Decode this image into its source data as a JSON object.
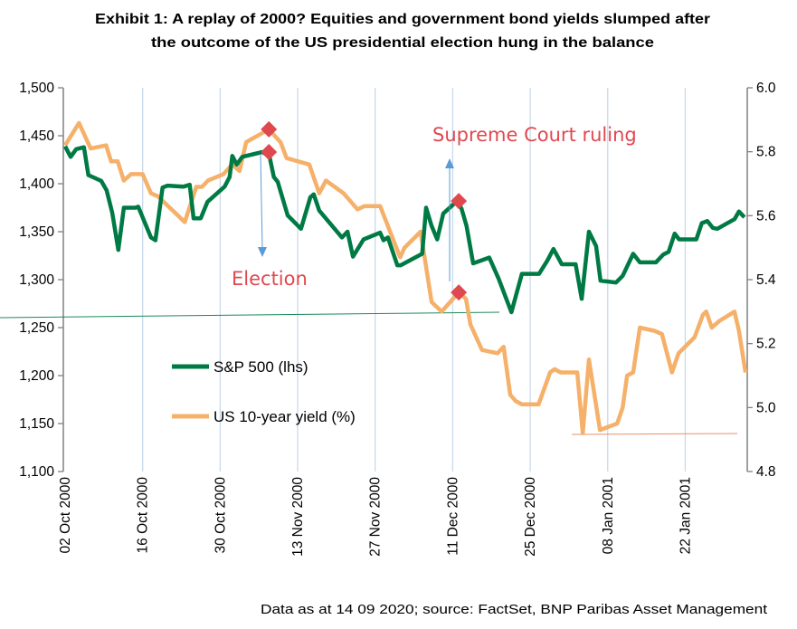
{
  "chart_data": {
    "type": "line",
    "title_lines": [
      "Exhibit 1: A replay of 2000? Equities and government bond yields slumped after",
      "the outcome of the US presidential election hung in the balance"
    ],
    "x_unit": "days since 02 Oct 2000",
    "x_ticks": [
      {
        "day": 0,
        "label": "02 Oct 2000"
      },
      {
        "day": 14,
        "label": "16 Oct 2000"
      },
      {
        "day": 28,
        "label": "30 Oct 2000"
      },
      {
        "day": 42,
        "label": "13 Nov 2000"
      },
      {
        "day": 56,
        "label": "27 Nov 2000"
      },
      {
        "day": 70,
        "label": "11 Dec 2000"
      },
      {
        "day": 84,
        "label": "25 Dec 2000"
      },
      {
        "day": 98,
        "label": "08 Jan 2001"
      },
      {
        "day": 112,
        "label": "22 Jan 2001"
      }
    ],
    "xlim": [
      0,
      123
    ],
    "y_left": {
      "ylim": [
        1100,
        1500
      ],
      "ticks": [
        "1,100",
        "1,150",
        "1,200",
        "1,250",
        "1,300",
        "1,350",
        "1,400",
        "1,450",
        "1,500"
      ],
      "tick_values": [
        1100,
        1150,
        1200,
        1250,
        1300,
        1350,
        1400,
        1450,
        1500
      ]
    },
    "y_right": {
      "ylim": [
        4.8,
        6.0
      ],
      "ticks": [
        "4.8",
        "5.0",
        "5.2",
        "5.4",
        "5.6",
        "5.8",
        "6.0"
      ],
      "tick_values": [
        4.8,
        5.0,
        5.2,
        5.4,
        5.6,
        5.8,
        6.0
      ]
    },
    "grid": "vertical",
    "legend_placement": "center-left",
    "series": [
      {
        "name": "S&P 500 (lhs)",
        "axis": "left",
        "color": "#007a44",
        "points": [
          [
            0,
            1439
          ],
          [
            1,
            1428
          ],
          [
            2,
            1436
          ],
          [
            3.4,
            1438
          ],
          [
            4.2,
            1409
          ],
          [
            6.5,
            1403
          ],
          [
            7.5,
            1393
          ],
          [
            8.5,
            1370
          ],
          [
            9.6,
            1331
          ],
          [
            10.6,
            1375
          ],
          [
            12.7,
            1375
          ],
          [
            13.2,
            1376
          ],
          [
            15.5,
            1344
          ],
          [
            16.3,
            1341
          ],
          [
            17.6,
            1396
          ],
          [
            18.5,
            1398
          ],
          [
            21.4,
            1397
          ],
          [
            22.5,
            1399
          ],
          [
            23.2,
            1364
          ],
          [
            24.5,
            1364
          ],
          [
            25.7,
            1381
          ],
          [
            28.8,
            1397
          ],
          [
            29.7,
            1407
          ],
          [
            30.2,
            1429
          ],
          [
            31,
            1420
          ],
          [
            32,
            1428
          ],
          [
            35.6,
            1433
          ],
          [
            36.9,
            1429
          ],
          [
            37.7,
            1407
          ],
          [
            38.4,
            1402
          ],
          [
            40.2,
            1367
          ],
          [
            42.6,
            1353
          ],
          [
            44.3,
            1386
          ],
          [
            44.9,
            1389
          ],
          [
            45.9,
            1372
          ],
          [
            50,
            1344
          ],
          [
            51,
            1350
          ],
          [
            52,
            1324
          ],
          [
            53.9,
            1342
          ],
          [
            56.9,
            1349
          ],
          [
            57.5,
            1341
          ],
          [
            58.3,
            1344
          ],
          [
            60,
            1315
          ],
          [
            60.6,
            1315
          ],
          [
            64.5,
            1327
          ],
          [
            65.2,
            1375
          ],
          [
            66.2,
            1356
          ],
          [
            67.2,
            1342
          ],
          [
            68.3,
            1369
          ],
          [
            70.8,
            1382
          ],
          [
            71.6,
            1374
          ],
          [
            72.5,
            1356
          ],
          [
            73.7,
            1317
          ],
          [
            76.6,
            1323
          ],
          [
            78.3,
            1301
          ],
          [
            80.6,
            1266
          ],
          [
            82.5,
            1306
          ],
          [
            85.6,
            1306
          ],
          [
            87.1,
            1320
          ],
          [
            88.2,
            1332
          ],
          [
            89.7,
            1316
          ],
          [
            92.2,
            1316
          ],
          [
            93.3,
            1280
          ],
          [
            94.6,
            1350
          ],
          [
            95.9,
            1335
          ],
          [
            96.7,
            1299
          ],
          [
            99.5,
            1297
          ],
          [
            100.7,
            1304
          ],
          [
            102.6,
            1327
          ],
          [
            103.8,
            1318
          ],
          [
            106.7,
            1318
          ],
          [
            108,
            1326
          ],
          [
            109,
            1329
          ],
          [
            110.1,
            1348
          ],
          [
            110.9,
            1342
          ],
          [
            114,
            1342
          ],
          [
            115,
            1359
          ],
          [
            116,
            1361
          ],
          [
            117,
            1354
          ],
          [
            117.8,
            1353
          ],
          [
            120.9,
            1363
          ],
          [
            121.7,
            1371
          ],
          [
            122.7,
            1365
          ]
        ]
      },
      {
        "name": "US 10-year yield (%)",
        "axis": "right",
        "color": "#f5b06a",
        "points": [
          [
            0,
            5.82
          ],
          [
            2.5,
            5.89
          ],
          [
            4.6,
            5.81
          ],
          [
            7.4,
            5.82
          ],
          [
            8.3,
            5.77
          ],
          [
            9.5,
            5.77
          ],
          [
            10.6,
            5.71
          ],
          [
            11.9,
            5.73
          ],
          [
            14,
            5.73
          ],
          [
            15.5,
            5.67
          ],
          [
            16.8,
            5.66
          ],
          [
            21.6,
            5.58
          ],
          [
            23.7,
            5.69
          ],
          [
            24.7,
            5.69
          ],
          [
            25.8,
            5.71
          ],
          [
            28.6,
            5.73
          ],
          [
            30.2,
            5.76
          ],
          [
            31.5,
            5.74
          ],
          [
            32.7,
            5.83
          ],
          [
            36.8,
            5.87
          ],
          [
            38.9,
            5.83
          ],
          [
            40,
            5.78
          ],
          [
            44.1,
            5.76
          ],
          [
            45.9,
            5.67
          ],
          [
            47.1,
            5.71
          ],
          [
            50.3,
            5.67
          ],
          [
            52.8,
            5.62
          ],
          [
            54.1,
            5.63
          ],
          [
            56.9,
            5.63
          ],
          [
            60.5,
            5.47
          ],
          [
            61.3,
            5.5
          ],
          [
            64.2,
            5.55
          ],
          [
            66.2,
            5.33
          ],
          [
            68,
            5.3
          ],
          [
            71.1,
            5.36
          ],
          [
            72.4,
            5.34
          ],
          [
            73.2,
            5.26
          ],
          [
            75.3,
            5.18
          ],
          [
            78.1,
            5.17
          ],
          [
            79.2,
            5.19
          ],
          [
            80.4,
            5.04
          ],
          [
            81.4,
            5.02
          ],
          [
            82.5,
            5.01
          ],
          [
            85.5,
            5.01
          ],
          [
            87.6,
            5.11
          ],
          [
            88.4,
            5.12
          ],
          [
            89.5,
            5.11
          ],
          [
            92.5,
            5.11
          ],
          [
            93.5,
            4.92
          ],
          [
            94.6,
            5.15
          ],
          [
            96.6,
            4.93
          ],
          [
            99.7,
            4.95
          ],
          [
            100.7,
            5.0
          ],
          [
            101.5,
            5.1
          ],
          [
            102.6,
            5.11
          ],
          [
            103.8,
            5.25
          ],
          [
            106.4,
            5.24
          ],
          [
            107.8,
            5.23
          ],
          [
            109.6,
            5.11
          ],
          [
            110.8,
            5.17
          ],
          [
            113.7,
            5.22
          ],
          [
            115.2,
            5.29
          ],
          [
            115.8,
            5.3
          ],
          [
            116.8,
            5.25
          ],
          [
            118.1,
            5.27
          ],
          [
            120.9,
            5.3
          ],
          [
            121.7,
            5.24
          ],
          [
            122.9,
            5.11
          ]
        ]
      }
    ],
    "annotations": [
      {
        "text": "Election",
        "day": 36.8,
        "sp500": 1433,
        "yield": 5.87,
        "arrow": "down"
      },
      {
        "text": "Supreme Court ruling",
        "day": 71.1,
        "sp500": 1382,
        "yield": 5.36,
        "arrow": "up"
      }
    ],
    "marker_color": "#e0484f",
    "source": "Data as at 14 09 2020; source: FactSet, BNP Paribas Asset Management"
  }
}
